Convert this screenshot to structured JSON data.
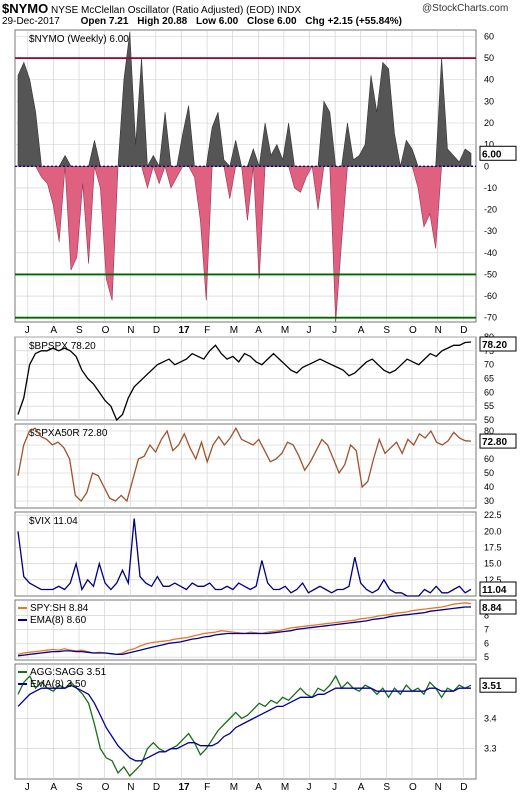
{
  "header": {
    "symbol": "$NYMO",
    "name": "NYSE McClellan Oscillator (Ratio Adjusted) (EOD)",
    "exchange": "INDX",
    "date": "29-Dec-2017",
    "open": "Open 7.21",
    "high": "High 20.88",
    "low": "Low 6.00",
    "close": "Close 6.00",
    "chg": "Chg +2.15 (+55.84%)",
    "chg_direction": "up",
    "watermark": "@StockCharts.com"
  },
  "colors": {
    "positive_fill": "#555555",
    "negative_fill": "#e06080",
    "overbought_line": "#990033",
    "oversold_line": "#006600",
    "bpspx_line": "#000000",
    "spxa50r_line": "#a0522d",
    "vix_line": "#000080",
    "spysh_line": "#e87722",
    "ema_line": "#000099",
    "aggsagg_line": "#1a6b1a",
    "grid": "#cccccc"
  },
  "x_axis": {
    "labels": [
      "J",
      "A",
      "S",
      "O",
      "N",
      "D",
      "17",
      "F",
      "M",
      "A",
      "M",
      "J",
      "J",
      "A",
      "S",
      "O",
      "N",
      "D"
    ],
    "bold_label": "17"
  },
  "chart_data": [
    {
      "id": "nymo",
      "type": "area",
      "legend": "$NYMO (Weekly) 6.00",
      "last_value": "6.00",
      "ylim": [
        -72,
        63
      ],
      "yticks": [
        60,
        50,
        40,
        30,
        20,
        10,
        0,
        -10,
        -20,
        -30,
        -40,
        -50,
        -60,
        -70
      ],
      "hlines": [
        50,
        0,
        -50,
        -70
      ],
      "values": [
        42,
        48,
        40,
        25,
        -5,
        -8,
        -18,
        -35,
        5,
        -48,
        -42,
        -8,
        -45,
        12,
        -10,
        -52,
        -62,
        0,
        40,
        62,
        10,
        50,
        -10,
        5,
        -8,
        25,
        -10,
        -5,
        15,
        28,
        -5,
        -25,
        -62,
        18,
        25,
        3,
        -15,
        12,
        0,
        -25,
        8,
        -52,
        20,
        5,
        10,
        3,
        20,
        -10,
        -12,
        -5,
        0,
        -20,
        30,
        25,
        -72,
        -35,
        20,
        3,
        5,
        10,
        42,
        25,
        48,
        45,
        15,
        0,
        12,
        8,
        -10,
        -28,
        -22,
        -38,
        50,
        8,
        5,
        2,
        8,
        6
      ],
      "series": [
        {
          "name": "$NYMO (Weekly)",
          "values": "see values"
        }
      ]
    },
    {
      "id": "bpspx",
      "type": "line",
      "legend": "$BPSPX 78.20",
      "last_value": "78.20",
      "ylim": [
        50,
        80
      ],
      "yticks": [
        80,
        75,
        70,
        65,
        60,
        55,
        50
      ],
      "values": [
        52,
        58,
        70,
        74,
        75,
        75,
        76,
        75,
        76,
        75,
        73,
        68,
        65,
        63,
        60,
        57,
        55,
        50,
        52,
        58,
        62,
        64,
        66,
        68,
        70,
        71,
        72,
        70,
        71,
        72,
        74,
        73,
        72,
        75,
        77,
        74,
        72,
        73,
        71,
        74,
        73,
        71,
        70,
        72,
        74,
        72,
        70,
        68,
        67,
        69,
        70,
        71,
        72,
        71,
        70,
        69,
        68,
        66,
        67,
        69,
        71,
        72,
        70,
        68,
        67,
        68,
        70,
        72,
        71,
        70,
        72,
        74,
        73,
        75,
        76,
        77,
        77,
        78,
        78.2
      ],
      "series": [
        {
          "name": "$BPSPX",
          "values": "see values"
        }
      ]
    },
    {
      "id": "spxa50r",
      "type": "line",
      "legend": "$SPXA50R 72.80",
      "last_value": "72.80",
      "ylim": [
        25,
        85
      ],
      "yticks": [
        80,
        70,
        60,
        50,
        40,
        30
      ],
      "values": [
        48,
        70,
        80,
        82,
        76,
        74,
        70,
        72,
        68,
        60,
        34,
        30,
        36,
        50,
        48,
        40,
        32,
        30,
        34,
        30,
        45,
        60,
        62,
        70,
        65,
        74,
        80,
        66,
        70,
        78,
        68,
        60,
        72,
        58,
        70,
        76,
        70,
        75,
        82,
        74,
        72,
        70,
        74,
        66,
        58,
        60,
        64,
        72,
        70,
        62,
        52,
        58,
        66,
        74,
        70,
        60,
        50,
        56,
        70,
        66,
        40,
        44,
        60,
        74,
        64,
        68,
        72,
        64,
        74,
        70,
        78,
        75,
        80,
        72,
        70,
        73,
        79,
        75,
        73,
        72.8
      ],
      "series": [
        {
          "name": "$SPXA50R",
          "values": "see values"
        }
      ]
    },
    {
      "id": "vix",
      "type": "line",
      "legend": "$VIX 11.04",
      "last_value": "11.04",
      "ylim": [
        10,
        23
      ],
      "yticks": [
        22.5,
        20.0,
        17.5,
        15.0,
        12.5
      ],
      "values": [
        20,
        13,
        12,
        11.5,
        11,
        11,
        11,
        11.5,
        11,
        12,
        15,
        11,
        12.5,
        11.5,
        15,
        12,
        11,
        12,
        14,
        12,
        22,
        13,
        12,
        11.5,
        13,
        11.5,
        11.5,
        12,
        11.5,
        11,
        12,
        11.5,
        11.5,
        12,
        11,
        11,
        11.5,
        11,
        12,
        11.5,
        11,
        11.5,
        15.5,
        12,
        11,
        11,
        11.5,
        10.5,
        11,
        12,
        10.5,
        11,
        11.5,
        11,
        10.5,
        11,
        11,
        11.5,
        16,
        12,
        11,
        10.5,
        11,
        12.5,
        11,
        10.5,
        10.5,
        10,
        10,
        10,
        11,
        10.5,
        11.5,
        10.5,
        10.5,
        11,
        11.5,
        10.5,
        11.04
      ],
      "series": [
        {
          "name": "$VIX",
          "values": "see values"
        }
      ]
    },
    {
      "id": "spysh",
      "type": "line",
      "legend_lines": [
        "SPY:SH 8.84",
        "EMA(8) 8.60"
      ],
      "last_value": "8.84",
      "ylim": [
        4.8,
        9.1
      ],
      "yticks": [
        8,
        7,
        6,
        5
      ],
      "series": [
        {
          "name": "SPY:SH 8.84",
          "values": [
            5.2,
            5.3,
            5.35,
            5.4,
            5.45,
            5.5,
            5.55,
            5.5,
            5.6,
            5.5,
            5.45,
            5.5,
            5.4,
            5.3,
            5.35,
            5.3,
            5.25,
            5.2,
            5.3,
            5.5,
            5.6,
            5.8,
            5.95,
            6.05,
            6.1,
            6.15,
            6.2,
            6.3,
            6.35,
            6.4,
            6.5,
            6.6,
            6.7,
            6.75,
            6.8,
            6.9,
            6.85,
            6.8,
            6.75,
            6.7,
            6.8,
            6.75,
            6.7,
            6.8,
            6.85,
            6.9,
            7.0,
            7.1,
            7.15,
            7.2,
            7.25,
            7.3,
            7.35,
            7.4,
            7.45,
            7.5,
            7.55,
            7.6,
            7.65,
            7.75,
            7.8,
            7.85,
            7.95,
            8.0,
            8.05,
            8.15,
            8.2,
            8.25,
            8.35,
            8.4,
            8.45,
            8.5,
            8.55,
            8.6,
            8.7,
            8.8,
            8.85,
            8.9,
            8.84
          ]
        },
        {
          "name": "EMA(8) 8.60",
          "values": [
            5.1,
            5.15,
            5.2,
            5.25,
            5.3,
            5.35,
            5.4,
            5.4,
            5.45,
            5.45,
            5.4,
            5.4,
            5.35,
            5.3,
            5.3,
            5.3,
            5.25,
            5.2,
            5.2,
            5.3,
            5.4,
            5.5,
            5.6,
            5.7,
            5.8,
            5.9,
            6.0,
            6.05,
            6.1,
            6.2,
            6.3,
            6.35,
            6.45,
            6.5,
            6.6,
            6.65,
            6.7,
            6.7,
            6.7,
            6.7,
            6.7,
            6.7,
            6.7,
            6.7,
            6.75,
            6.8,
            6.85,
            6.9,
            7.0,
            7.05,
            7.1,
            7.15,
            7.2,
            7.25,
            7.3,
            7.35,
            7.4,
            7.45,
            7.5,
            7.55,
            7.6,
            7.7,
            7.75,
            7.8,
            7.9,
            7.95,
            8.0,
            8.05,
            8.1,
            8.15,
            8.2,
            8.3,
            8.35,
            8.4,
            8.45,
            8.5,
            8.55,
            8.6,
            8.6
          ]
        }
      ]
    },
    {
      "id": "aggsagg",
      "type": "line",
      "legend_lines": [
        "AGG:SAGG 3.51",
        "EMA(8) 3.50"
      ],
      "last_value": "3.51",
      "ylim": [
        3.2,
        3.58
      ],
      "yticks": [
        3.4,
        3.3
      ],
      "series": [
        {
          "name": "AGG:SAGG 3.51",
          "values": [
            3.48,
            3.52,
            3.54,
            3.5,
            3.52,
            3.5,
            3.49,
            3.51,
            3.5,
            3.52,
            3.5,
            3.48,
            3.45,
            3.38,
            3.3,
            3.27,
            3.26,
            3.22,
            3.24,
            3.21,
            3.23,
            3.25,
            3.3,
            3.32,
            3.3,
            3.29,
            3.3,
            3.31,
            3.33,
            3.35,
            3.32,
            3.28,
            3.3,
            3.33,
            3.36,
            3.38,
            3.4,
            3.42,
            3.4,
            3.41,
            3.43,
            3.45,
            3.44,
            3.46,
            3.45,
            3.47,
            3.46,
            3.48,
            3.5,
            3.48,
            3.47,
            3.5,
            3.49,
            3.51,
            3.54,
            3.5,
            3.52,
            3.5,
            3.49,
            3.51,
            3.5,
            3.48,
            3.5,
            3.47,
            3.5,
            3.48,
            3.51,
            3.49,
            3.5,
            3.48,
            3.52,
            3.5,
            3.47,
            3.5,
            3.49,
            3.51,
            3.5,
            3.51
          ]
        },
        {
          "name": "EMA(8) 3.50",
          "values": [
            3.44,
            3.46,
            3.48,
            3.49,
            3.5,
            3.5,
            3.5,
            3.5,
            3.5,
            3.51,
            3.5,
            3.49,
            3.48,
            3.45,
            3.41,
            3.37,
            3.34,
            3.31,
            3.29,
            3.27,
            3.26,
            3.26,
            3.27,
            3.28,
            3.29,
            3.29,
            3.3,
            3.3,
            3.31,
            3.32,
            3.32,
            3.31,
            3.31,
            3.31,
            3.32,
            3.34,
            3.35,
            3.37,
            3.38,
            3.39,
            3.4,
            3.41,
            3.42,
            3.43,
            3.44,
            3.44,
            3.45,
            3.46,
            3.47,
            3.47,
            3.47,
            3.48,
            3.48,
            3.49,
            3.5,
            3.5,
            3.5,
            3.5,
            3.5,
            3.5,
            3.5,
            3.49,
            3.49,
            3.49,
            3.49,
            3.49,
            3.49,
            3.49,
            3.49,
            3.49,
            3.5,
            3.5,
            3.49,
            3.49,
            3.49,
            3.5,
            3.5,
            3.5
          ]
        }
      ]
    }
  ]
}
